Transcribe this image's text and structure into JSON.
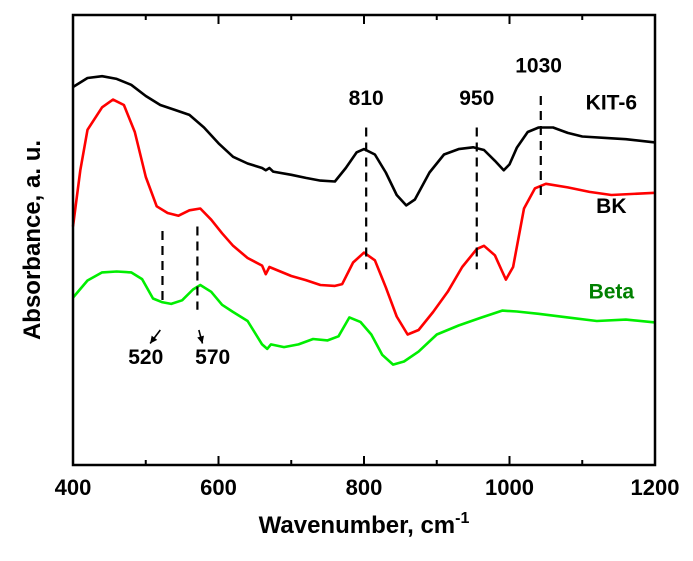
{
  "chart_data": {
    "type": "line",
    "xlabel": "Wavenumber, cm",
    "xlabel_sup": "-1",
    "ylabel": "Absorbance, a. u.",
    "xlim": [
      400,
      1200
    ],
    "ylim": [
      0,
      1
    ],
    "x_ticks": [
      {
        "value": 400,
        "label": "400"
      },
      {
        "value": 600,
        "label": "600"
      },
      {
        "value": 800,
        "label": "800"
      },
      {
        "value": 1000,
        "label": "1000"
      },
      {
        "value": 1200,
        "label": "1200"
      }
    ],
    "y_ticks_labeled": false,
    "grid": false,
    "series": [
      {
        "name": "KIT-6",
        "color": "#000000",
        "points": [
          [
            400,
            0.84
          ],
          [
            420,
            0.86
          ],
          [
            440,
            0.864
          ],
          [
            460,
            0.858
          ],
          [
            480,
            0.845
          ],
          [
            500,
            0.82
          ],
          [
            520,
            0.8
          ],
          [
            540,
            0.789
          ],
          [
            560,
            0.778
          ],
          [
            580,
            0.75
          ],
          [
            600,
            0.715
          ],
          [
            620,
            0.685
          ],
          [
            640,
            0.67
          ],
          [
            660,
            0.66
          ],
          [
            665,
            0.655
          ],
          [
            670,
            0.66
          ],
          [
            675,
            0.652
          ],
          [
            700,
            0.645
          ],
          [
            720,
            0.638
          ],
          [
            740,
            0.632
          ],
          [
            760,
            0.63
          ],
          [
            775,
            0.66
          ],
          [
            790,
            0.695
          ],
          [
            800,
            0.702
          ],
          [
            815,
            0.69
          ],
          [
            830,
            0.65
          ],
          [
            845,
            0.6
          ],
          [
            858,
            0.577
          ],
          [
            870,
            0.59
          ],
          [
            890,
            0.65
          ],
          [
            910,
            0.69
          ],
          [
            930,
            0.702
          ],
          [
            950,
            0.706
          ],
          [
            965,
            0.7
          ],
          [
            980,
            0.676
          ],
          [
            992,
            0.655
          ],
          [
            1000,
            0.668
          ],
          [
            1010,
            0.705
          ],
          [
            1025,
            0.74
          ],
          [
            1040,
            0.75
          ],
          [
            1060,
            0.75
          ],
          [
            1080,
            0.738
          ],
          [
            1100,
            0.73
          ],
          [
            1140,
            0.726
          ],
          [
            1160,
            0.724
          ],
          [
            1200,
            0.717
          ]
        ]
      },
      {
        "name": "BK",
        "color": "#ff0000",
        "points": [
          [
            400,
            0.53
          ],
          [
            410,
            0.655
          ],
          [
            420,
            0.745
          ],
          [
            440,
            0.795
          ],
          [
            455,
            0.812
          ],
          [
            470,
            0.8
          ],
          [
            485,
            0.74
          ],
          [
            500,
            0.64
          ],
          [
            515,
            0.575
          ],
          [
            530,
            0.56
          ],
          [
            545,
            0.554
          ],
          [
            560,
            0.566
          ],
          [
            575,
            0.57
          ],
          [
            590,
            0.545
          ],
          [
            605,
            0.515
          ],
          [
            620,
            0.487
          ],
          [
            640,
            0.46
          ],
          [
            660,
            0.443
          ],
          [
            665,
            0.424
          ],
          [
            670,
            0.44
          ],
          [
            700,
            0.42
          ],
          [
            720,
            0.411
          ],
          [
            740,
            0.4
          ],
          [
            760,
            0.398
          ],
          [
            770,
            0.402
          ],
          [
            785,
            0.45
          ],
          [
            800,
            0.472
          ],
          [
            815,
            0.455
          ],
          [
            830,
            0.395
          ],
          [
            845,
            0.33
          ],
          [
            860,
            0.29
          ],
          [
            875,
            0.3
          ],
          [
            895,
            0.34
          ],
          [
            915,
            0.385
          ],
          [
            935,
            0.44
          ],
          [
            955,
            0.48
          ],
          [
            965,
            0.487
          ],
          [
            980,
            0.466
          ],
          [
            990,
            0.43
          ],
          [
            995,
            0.412
          ],
          [
            1005,
            0.44
          ],
          [
            1020,
            0.57
          ],
          [
            1035,
            0.615
          ],
          [
            1050,
            0.625
          ],
          [
            1080,
            0.617
          ],
          [
            1110,
            0.607
          ],
          [
            1140,
            0.6
          ],
          [
            1200,
            0.605
          ]
        ]
      },
      {
        "name": "Beta",
        "color": "#00ee00",
        "points": [
          [
            400,
            0.372
          ],
          [
            420,
            0.41
          ],
          [
            440,
            0.428
          ],
          [
            460,
            0.43
          ],
          [
            480,
            0.428
          ],
          [
            495,
            0.413
          ],
          [
            510,
            0.37
          ],
          [
            522,
            0.362
          ],
          [
            535,
            0.358
          ],
          [
            550,
            0.366
          ],
          [
            565,
            0.39
          ],
          [
            575,
            0.4
          ],
          [
            590,
            0.385
          ],
          [
            605,
            0.356
          ],
          [
            620,
            0.34
          ],
          [
            640,
            0.32
          ],
          [
            660,
            0.268
          ],
          [
            667,
            0.258
          ],
          [
            672,
            0.268
          ],
          [
            690,
            0.262
          ],
          [
            710,
            0.268
          ],
          [
            730,
            0.28
          ],
          [
            750,
            0.277
          ],
          [
            765,
            0.286
          ],
          [
            780,
            0.328
          ],
          [
            795,
            0.318
          ],
          [
            810,
            0.29
          ],
          [
            825,
            0.245
          ],
          [
            840,
            0.223
          ],
          [
            855,
            0.23
          ],
          [
            875,
            0.252
          ],
          [
            900,
            0.29
          ],
          [
            930,
            0.31
          ],
          [
            960,
            0.327
          ],
          [
            990,
            0.343
          ],
          [
            1010,
            0.341
          ],
          [
            1040,
            0.336
          ],
          [
            1080,
            0.328
          ],
          [
            1120,
            0.32
          ],
          [
            1160,
            0.323
          ],
          [
            1200,
            0.317
          ]
        ]
      }
    ],
    "series_labels": [
      {
        "series": "KIT-6",
        "text": "KIT-6",
        "x": 1140,
        "y": 0.79
      },
      {
        "series": "BK",
        "text": "BK",
        "x": 1140,
        "y": 0.56
      },
      {
        "series": "Beta",
        "text": "Beta",
        "x": 1140,
        "y": 0.37
      }
    ],
    "annotations": [
      {
        "text": "810",
        "x": 803,
        "y": 0.8,
        "line": [
          [
            803,
            0.75
          ],
          [
            803,
            0.435
          ]
        ]
      },
      {
        "text": "950",
        "x": 955,
        "y": 0.8,
        "line": [
          [
            955,
            0.75
          ],
          [
            955,
            0.435
          ]
        ]
      },
      {
        "text": "1030",
        "x": 1040,
        "y": 0.872,
        "line": [
          [
            1043,
            0.82
          ],
          [
            1043,
            0.59
          ]
        ]
      },
      {
        "text": "520",
        "x": 500,
        "y": 0.225,
        "line": [
          [
            523,
            0.52
          ],
          [
            523,
            0.355
          ]
        ],
        "arrow": [
          [
            520,
            0.3
          ],
          [
            506,
            0.27
          ]
        ]
      },
      {
        "text": "570",
        "x": 592,
        "y": 0.225,
        "line": [
          [
            571,
            0.53
          ],
          [
            571,
            0.345
          ]
        ],
        "arrow": [
          [
            573,
            0.3
          ],
          [
            578,
            0.27
          ]
        ]
      }
    ]
  }
}
